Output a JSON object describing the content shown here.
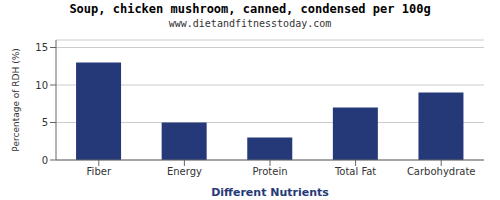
{
  "chart_data": {
    "type": "bar",
    "title": "Soup, chicken mushroom, canned, condensed per 100g",
    "subtitle": "www.dietandfitnesstoday.com",
    "xlabel": "Different Nutrients",
    "ylabel": "Percentage of RDH (%)",
    "categories": [
      "Fiber",
      "Energy",
      "Protein",
      "Total Fat",
      "Carbohydrate"
    ],
    "values": [
      13,
      5,
      3,
      7,
      9
    ],
    "color": "#253878",
    "ylim": [
      0,
      16
    ],
    "yticks": [
      0,
      5,
      10,
      15
    ],
    "grid": true
  }
}
